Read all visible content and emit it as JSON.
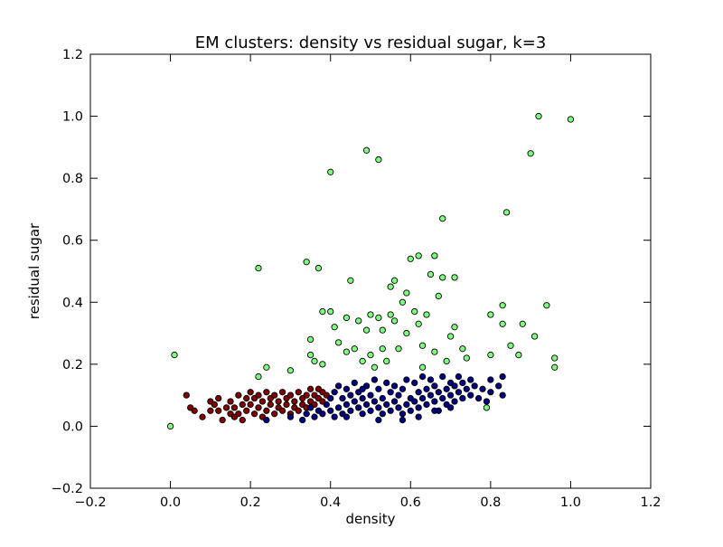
{
  "chart_data": {
    "type": "scatter",
    "title": "EM clusters: density vs residual sugar, k=3",
    "xlabel": "density",
    "ylabel": "residual sugar",
    "xlim": [
      -0.2,
      1.2
    ],
    "ylim": [
      -0.2,
      1.2
    ],
    "xticks": [
      -0.2,
      0.0,
      0.2,
      0.4,
      0.6,
      0.8,
      1.0,
      1.2
    ],
    "yticks": [
      -0.2,
      0.0,
      0.2,
      0.4,
      0.6,
      0.8,
      1.0,
      1.2
    ],
    "xtick_labels": [
      "−0.2",
      "0.0",
      "0.2",
      "0.4",
      "0.6",
      "0.8",
      "1.0",
      "1.2"
    ],
    "ytick_labels": [
      "−0.2",
      "0.0",
      "0.2",
      "0.4",
      "0.6",
      "0.8",
      "1.0",
      "1.2"
    ],
    "grid": false,
    "legend": "none",
    "colors": {
      "cluster_0": "#800000",
      "cluster_1": "#000080",
      "cluster_2": "#80ff80",
      "edge": "#000000",
      "background": "#ffffff"
    },
    "series": [
      {
        "color": "#800000",
        "points": [
          [
            0.04,
            0.1
          ],
          [
            0.05,
            0.06
          ],
          [
            0.06,
            0.05
          ],
          [
            0.08,
            0.03
          ],
          [
            0.1,
            0.08
          ],
          [
            0.1,
            0.05
          ],
          [
            0.11,
            0.07
          ],
          [
            0.12,
            0.09
          ],
          [
            0.12,
            0.05
          ],
          [
            0.13,
            0.02
          ],
          [
            0.14,
            0.06
          ],
          [
            0.15,
            0.04
          ],
          [
            0.15,
            0.08
          ],
          [
            0.16,
            0.03
          ],
          [
            0.16,
            0.06
          ],
          [
            0.17,
            0.1
          ],
          [
            0.17,
            0.04
          ],
          [
            0.18,
            0.07
          ],
          [
            0.18,
            0.02
          ],
          [
            0.19,
            0.09
          ],
          [
            0.19,
            0.05
          ],
          [
            0.2,
            0.11
          ],
          [
            0.2,
            0.07
          ],
          [
            0.21,
            0.04
          ],
          [
            0.21,
            0.09
          ],
          [
            0.22,
            0.06
          ],
          [
            0.22,
            0.1
          ],
          [
            0.23,
            0.03
          ],
          [
            0.23,
            0.08
          ],
          [
            0.24,
            0.05
          ],
          [
            0.24,
            0.11
          ],
          [
            0.25,
            0.07
          ],
          [
            0.25,
            0.09
          ],
          [
            0.26,
            0.04
          ],
          [
            0.26,
            0.1
          ],
          [
            0.27,
            0.06
          ],
          [
            0.27,
            0.08
          ],
          [
            0.28,
            0.05
          ],
          [
            0.28,
            0.11
          ],
          [
            0.29,
            0.07
          ],
          [
            0.29,
            0.09
          ],
          [
            0.3,
            0.04
          ],
          [
            0.3,
            0.1
          ],
          [
            0.31,
            0.06
          ],
          [
            0.31,
            0.08
          ],
          [
            0.32,
            0.05
          ],
          [
            0.32,
            0.11
          ],
          [
            0.33,
            0.07
          ],
          [
            0.33,
            0.09
          ],
          [
            0.34,
            0.06
          ],
          [
            0.34,
            0.1
          ],
          [
            0.35,
            0.08
          ],
          [
            0.35,
            0.12
          ],
          [
            0.36,
            0.07
          ],
          [
            0.36,
            0.1
          ],
          [
            0.37,
            0.09
          ],
          [
            0.37,
            0.12
          ],
          [
            0.38,
            0.08
          ],
          [
            0.38,
            0.11
          ],
          [
            0.39,
            0.1
          ]
        ]
      },
      {
        "color": "#000080",
        "points": [
          [
            0.24,
            0.02
          ],
          [
            0.3,
            0.03
          ],
          [
            0.33,
            0.02
          ],
          [
            0.34,
            0.04
          ],
          [
            0.35,
            0.06
          ],
          [
            0.36,
            0.03
          ],
          [
            0.37,
            0.05
          ],
          [
            0.38,
            0.04
          ],
          [
            0.39,
            0.07
          ],
          [
            0.4,
            0.05
          ],
          [
            0.4,
            0.09
          ],
          [
            0.41,
            0.03
          ],
          [
            0.41,
            0.11
          ],
          [
            0.42,
            0.06
          ],
          [
            0.42,
            0.13
          ],
          [
            0.43,
            0.04
          ],
          [
            0.43,
            0.09
          ],
          [
            0.44,
            0.07
          ],
          [
            0.44,
            0.12
          ],
          [
            0.45,
            0.05
          ],
          [
            0.45,
            0.1
          ],
          [
            0.46,
            0.08
          ],
          [
            0.46,
            0.14
          ],
          [
            0.47,
            0.06
          ],
          [
            0.47,
            0.11
          ],
          [
            0.48,
            0.04
          ],
          [
            0.48,
            0.09
          ],
          [
            0.49,
            0.07
          ],
          [
            0.49,
            0.13
          ],
          [
            0.5,
            0.05
          ],
          [
            0.5,
            0.1
          ],
          [
            0.51,
            0.08
          ],
          [
            0.51,
            0.15
          ],
          [
            0.52,
            0.06
          ],
          [
            0.52,
            0.12
          ],
          [
            0.53,
            0.04
          ],
          [
            0.53,
            0.09
          ],
          [
            0.54,
            0.07
          ],
          [
            0.54,
            0.14
          ],
          [
            0.55,
            0.05
          ],
          [
            0.55,
            0.11
          ],
          [
            0.56,
            0.08
          ],
          [
            0.56,
            0.13
          ],
          [
            0.57,
            0.06
          ],
          [
            0.57,
            0.1
          ],
          [
            0.58,
            0.04
          ],
          [
            0.58,
            0.12
          ],
          [
            0.59,
            0.07
          ],
          [
            0.59,
            0.15
          ],
          [
            0.6,
            0.05
          ],
          [
            0.6,
            0.09
          ],
          [
            0.61,
            0.08
          ],
          [
            0.61,
            0.14
          ],
          [
            0.62,
            0.06
          ],
          [
            0.62,
            0.11
          ],
          [
            0.63,
            0.09
          ],
          [
            0.63,
            0.16
          ],
          [
            0.64,
            0.07
          ],
          [
            0.64,
            0.12
          ],
          [
            0.65,
            0.1
          ],
          [
            0.65,
            0.15
          ],
          [
            0.66,
            0.08
          ],
          [
            0.66,
            0.13
          ],
          [
            0.67,
            0.05
          ],
          [
            0.67,
            0.11
          ],
          [
            0.68,
            0.09
          ],
          [
            0.68,
            0.16
          ],
          [
            0.69,
            0.07
          ],
          [
            0.69,
            0.12
          ],
          [
            0.7,
            0.1
          ],
          [
            0.7,
            0.14
          ],
          [
            0.71,
            0.08
          ],
          [
            0.71,
            0.13
          ],
          [
            0.72,
            0.11
          ],
          [
            0.72,
            0.16
          ],
          [
            0.73,
            0.09
          ],
          [
            0.73,
            0.14
          ],
          [
            0.74,
            0.12
          ],
          [
            0.75,
            0.1
          ],
          [
            0.75,
            0.15
          ],
          [
            0.76,
            0.13
          ],
          [
            0.77,
            0.09
          ],
          [
            0.78,
            0.12
          ],
          [
            0.79,
            0.08
          ],
          [
            0.8,
            0.11
          ],
          [
            0.8,
            0.15
          ],
          [
            0.82,
            0.13
          ],
          [
            0.83,
            0.16
          ],
          [
            0.83,
            0.1
          ],
          [
            0.52,
            0.02
          ],
          [
            0.48,
            0.12
          ],
          [
            0.44,
            0.03
          ],
          [
            0.58,
            0.02
          ],
          [
            0.62,
            0.03
          ],
          [
            0.66,
            0.05
          ],
          [
            0.7,
            0.06
          ]
        ]
      },
      {
        "color": "#80ff80",
        "points": [
          [
            0.0,
            0.0
          ],
          [
            0.01,
            0.23
          ],
          [
            0.22,
            0.51
          ],
          [
            0.22,
            0.16
          ],
          [
            0.24,
            0.19
          ],
          [
            0.3,
            0.18
          ],
          [
            0.34,
            0.53
          ],
          [
            0.35,
            0.28
          ],
          [
            0.35,
            0.23
          ],
          [
            0.36,
            0.21
          ],
          [
            0.37,
            0.51
          ],
          [
            0.38,
            0.37
          ],
          [
            0.38,
            0.2
          ],
          [
            0.4,
            0.82
          ],
          [
            0.4,
            0.37
          ],
          [
            0.41,
            0.32
          ],
          [
            0.42,
            0.27
          ],
          [
            0.44,
            0.35
          ],
          [
            0.44,
            0.24
          ],
          [
            0.45,
            0.47
          ],
          [
            0.46,
            0.25
          ],
          [
            0.47,
            0.34
          ],
          [
            0.48,
            0.21
          ],
          [
            0.49,
            0.89
          ],
          [
            0.49,
            0.31
          ],
          [
            0.5,
            0.36
          ],
          [
            0.5,
            0.23
          ],
          [
            0.51,
            0.19
          ],
          [
            0.52,
            0.86
          ],
          [
            0.52,
            0.35
          ],
          [
            0.53,
            0.31
          ],
          [
            0.53,
            0.25
          ],
          [
            0.54,
            0.21
          ],
          [
            0.55,
            0.45
          ],
          [
            0.55,
            0.36
          ],
          [
            0.56,
            0.47
          ],
          [
            0.56,
            0.34
          ],
          [
            0.57,
            0.25
          ],
          [
            0.58,
            0.4
          ],
          [
            0.59,
            0.3
          ],
          [
            0.59,
            0.43
          ],
          [
            0.6,
            0.54
          ],
          [
            0.61,
            0.37
          ],
          [
            0.62,
            0.55
          ],
          [
            0.62,
            0.33
          ],
          [
            0.63,
            0.26
          ],
          [
            0.63,
            0.19
          ],
          [
            0.64,
            0.36
          ],
          [
            0.65,
            0.49
          ],
          [
            0.66,
            0.55
          ],
          [
            0.66,
            0.24
          ],
          [
            0.67,
            0.42
          ],
          [
            0.68,
            0.67
          ],
          [
            0.68,
            0.48
          ],
          [
            0.69,
            0.21
          ],
          [
            0.7,
            0.29
          ],
          [
            0.71,
            0.32
          ],
          [
            0.71,
            0.48
          ],
          [
            0.73,
            0.25
          ],
          [
            0.74,
            0.22
          ],
          [
            0.79,
            0.06
          ],
          [
            0.8,
            0.36
          ],
          [
            0.8,
            0.23
          ],
          [
            0.83,
            0.39
          ],
          [
            0.83,
            0.33
          ],
          [
            0.84,
            0.69
          ],
          [
            0.85,
            0.26
          ],
          [
            0.87,
            0.23
          ],
          [
            0.88,
            0.33
          ],
          [
            0.9,
            0.88
          ],
          [
            0.91,
            0.29
          ],
          [
            0.92,
            1.0
          ],
          [
            0.94,
            0.39
          ],
          [
            0.96,
            0.22
          ],
          [
            0.96,
            0.19
          ],
          [
            1.0,
            0.99
          ]
        ]
      }
    ]
  }
}
